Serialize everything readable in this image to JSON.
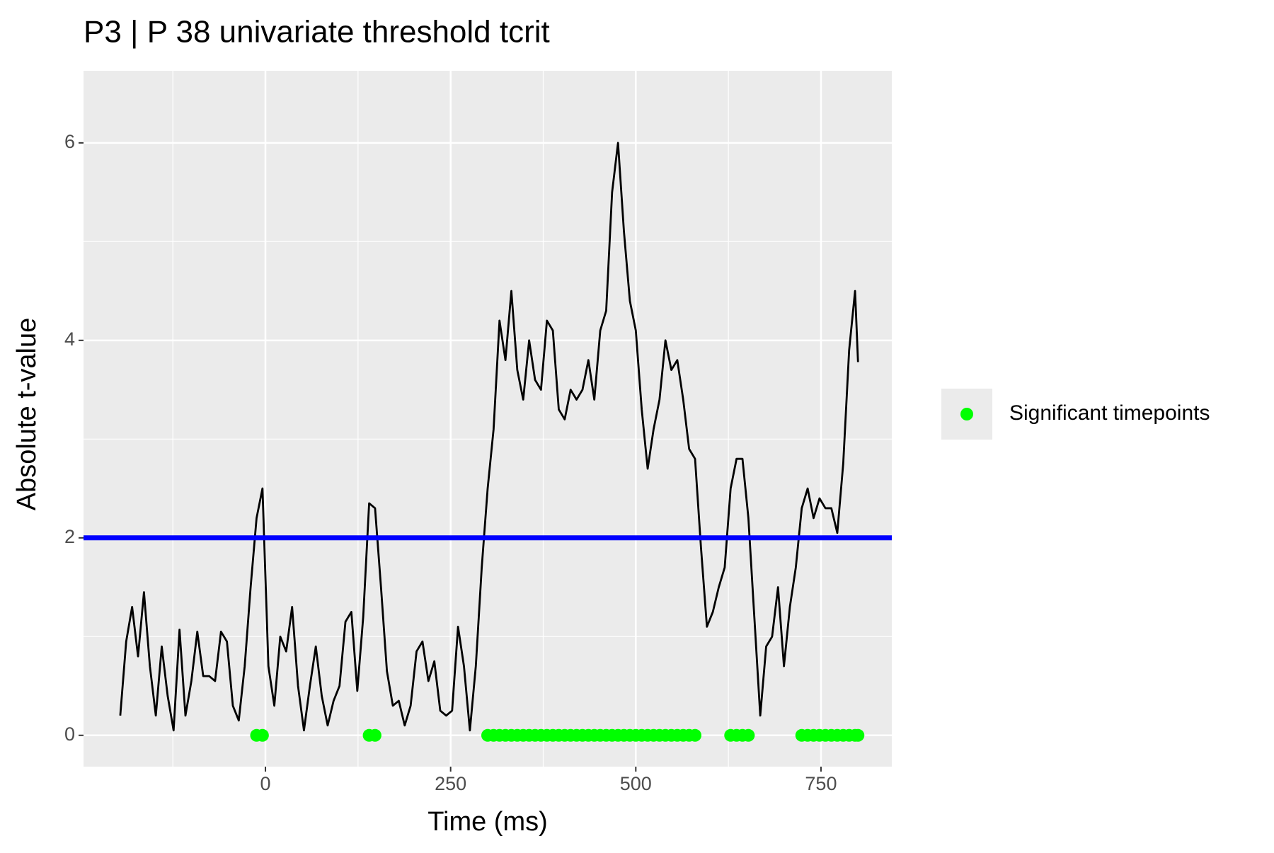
{
  "chart_data": {
    "type": "line",
    "title": "P3 | P 38  univariate threshold tcrit",
    "x_label": "Time (ms)",
    "y_label": "Absolute t-value",
    "x": [
      -196,
      -188,
      -180,
      -172,
      -164,
      -156,
      -148,
      -140,
      -132,
      -124,
      -116,
      -108,
      -100,
      -92,
      -84,
      -76,
      -68,
      -60,
      -52,
      -44,
      -36,
      -28,
      -20,
      -12,
      -4,
      4,
      12,
      20,
      28,
      36,
      44,
      52,
      60,
      68,
      76,
      84,
      92,
      100,
      108,
      116,
      124,
      132,
      140,
      148,
      156,
      164,
      172,
      180,
      188,
      196,
      204,
      212,
      220,
      228,
      236,
      244,
      252,
      260,
      268,
      276,
      284,
      292,
      300,
      308,
      316,
      324,
      332,
      340,
      348,
      356,
      364,
      372,
      380,
      388,
      396,
      404,
      412,
      420,
      428,
      436,
      444,
      452,
      460,
      468,
      476,
      484,
      492,
      500,
      508,
      516,
      524,
      532,
      540,
      548,
      556,
      564,
      572,
      580,
      588,
      596,
      604,
      612,
      620,
      628,
      636,
      644,
      652,
      660,
      668,
      676,
      684,
      692,
      700,
      708,
      716,
      724,
      732,
      740,
      748,
      756,
      764,
      772,
      780,
      788,
      796,
      800
    ],
    "series": [
      {
        "color": "#000000",
        "values": [
          0.2,
          0.95,
          1.3,
          0.8,
          1.45,
          0.7,
          0.2,
          0.9,
          0.4,
          0.05,
          1.07,
          0.2,
          0.55,
          1.05,
          0.6,
          0.6,
          0.55,
          1.05,
          0.95,
          0.3,
          0.15,
          0.7,
          1.5,
          2.2,
          2.5,
          0.7,
          0.3,
          1.0,
          0.85,
          1.3,
          0.5,
          0.05,
          0.5,
          0.9,
          0.4,
          0.1,
          0.35,
          0.5,
          1.15,
          1.25,
          0.45,
          1.2,
          2.35,
          2.3,
          1.5,
          0.65,
          0.3,
          0.35,
          0.1,
          0.3,
          0.85,
          0.95,
          0.55,
          0.75,
          0.25,
          0.2,
          0.25,
          1.1,
          0.7,
          0.05,
          0.7,
          1.7,
          2.5,
          3.1,
          4.2,
          3.8,
          4.5,
          3.7,
          3.4,
          4.0,
          3.6,
          3.5,
          4.2,
          4.1,
          3.3,
          3.2,
          3.5,
          3.4,
          3.5,
          3.8,
          3.4,
          4.1,
          4.3,
          5.5,
          6.0,
          5.1,
          4.4,
          4.1,
          3.3,
          2.7,
          3.1,
          3.4,
          4.0,
          3.7,
          3.8,
          3.4,
          2.9,
          2.8,
          1.9,
          1.1,
          1.25,
          1.5,
          1.7,
          2.5,
          2.8,
          2.8,
          2.2,
          1.2,
          0.2,
          0.9,
          1.0,
          1.5,
          0.7,
          1.3,
          1.7,
          2.3,
          2.5,
          2.2,
          2.4,
          2.3,
          2.3,
          2.05,
          2.75,
          3.9,
          4.5,
          3.78
        ]
      },
      {
        "type": "scatter",
        "name": "Significant timepoints",
        "color": "#00ff00",
        "x": [
          -12,
          -4,
          140,
          148,
          300,
          308,
          316,
          324,
          332,
          340,
          348,
          356,
          364,
          372,
          380,
          388,
          396,
          404,
          412,
          420,
          428,
          436,
          444,
          452,
          460,
          468,
          476,
          484,
          492,
          500,
          508,
          516,
          524,
          532,
          540,
          548,
          556,
          564,
          572,
          580,
          628,
          636,
          644,
          652,
          724,
          732,
          740,
          748,
          756,
          764,
          772,
          780,
          788,
          796,
          800
        ],
        "values": [
          0,
          0,
          0,
          0,
          0,
          0,
          0,
          0,
          0,
          0,
          0,
          0,
          0,
          0,
          0,
          0,
          0,
          0,
          0,
          0,
          0,
          0,
          0,
          0,
          0,
          0,
          0,
          0,
          0,
          0,
          0,
          0,
          0,
          0,
          0,
          0,
          0,
          0,
          0,
          0,
          0,
          0,
          0,
          0,
          0,
          0,
          0,
          0,
          0,
          0,
          0,
          0,
          0,
          0,
          0
        ]
      }
    ],
    "hline": {
      "value": 2,
      "color": "#0000ff"
    },
    "xlim": [
      -245.6,
      845.6
    ],
    "xticks": [
      0,
      250,
      500,
      750
    ],
    "ylim": [
      -0.317,
      6.73
    ],
    "yticks": [
      0,
      2,
      4,
      6
    ],
    "grid": true,
    "legend": "right"
  }
}
